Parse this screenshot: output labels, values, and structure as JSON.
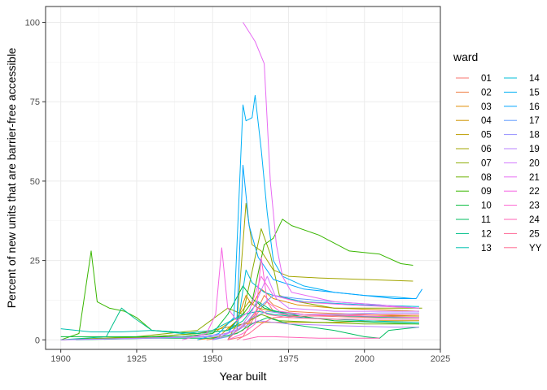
{
  "chart_data": {
    "type": "line",
    "title": "",
    "xlabel": "Year built",
    "ylabel": "Percent of new units that are barrier-free accessible",
    "xlim": [
      1895,
      2025
    ],
    "ylim": [
      -3,
      105
    ],
    "x_ticks": [
      1900,
      1925,
      1950,
      1975,
      2000,
      2025
    ],
    "x_tick_labels": [
      "1900",
      "1925",
      "1950",
      "1975",
      "2000",
      "2025"
    ],
    "y_ticks": [
      0,
      25,
      50,
      75,
      100
    ],
    "y_tick_labels": [
      "0",
      "25",
      "50",
      "75",
      "100"
    ],
    "grid": true,
    "legend": {
      "title": "ward",
      "placement": "right",
      "columns": 2
    },
    "series": [
      {
        "name": "01",
        "color": "#F8766D",
        "points": [
          [
            1955,
            0
          ],
          [
            1960,
            1
          ],
          [
            1963,
            6
          ],
          [
            1966,
            10
          ],
          [
            1968,
            12
          ],
          [
            1970,
            9
          ],
          [
            1973,
            8
          ],
          [
            1978,
            7.5
          ],
          [
            1985,
            7.5
          ],
          [
            1995,
            7.2
          ],
          [
            2005,
            7
          ],
          [
            2018,
            7
          ]
        ]
      },
      {
        "name": "02",
        "color": "#EE8043",
        "points": [
          [
            1948,
            0
          ],
          [
            1955,
            1
          ],
          [
            1960,
            3
          ],
          [
            1964,
            8
          ],
          [
            1967,
            14
          ],
          [
            1970,
            11
          ],
          [
            1975,
            9
          ],
          [
            1985,
            8.5
          ],
          [
            2000,
            8
          ],
          [
            2018,
            7.5
          ]
        ]
      },
      {
        "name": "03",
        "color": "#E08B00",
        "points": [
          [
            1945,
            0
          ],
          [
            1952,
            1
          ],
          [
            1958,
            6
          ],
          [
            1961,
            14
          ],
          [
            1963,
            11
          ],
          [
            1966,
            16
          ],
          [
            1970,
            13
          ],
          [
            1978,
            11
          ],
          [
            1990,
            10
          ],
          [
            2005,
            9.5
          ],
          [
            2018,
            9
          ]
        ]
      },
      {
        "name": "04",
        "color": "#CF9400",
        "points": [
          [
            1900,
            0
          ],
          [
            1930,
            1
          ],
          [
            1945,
            2
          ],
          [
            1955,
            4
          ],
          [
            1960,
            5
          ],
          [
            1965,
            5.5
          ],
          [
            1975,
            5.5
          ],
          [
            1990,
            5.5
          ],
          [
            2005,
            6
          ],
          [
            2018,
            6
          ]
        ]
      },
      {
        "name": "05",
        "color": "#BD9D00",
        "points": [
          [
            1900,
            0
          ],
          [
            1920,
            0.5
          ],
          [
            1940,
            1
          ],
          [
            1950,
            2
          ],
          [
            1958,
            7
          ],
          [
            1962,
            12
          ],
          [
            1965,
            10
          ],
          [
            1970,
            9
          ],
          [
            1980,
            8
          ],
          [
            2000,
            7.5
          ],
          [
            2018,
            7.5
          ]
        ]
      },
      {
        "name": "06",
        "color": "#A3A500",
        "points": [
          [
            1955,
            0
          ],
          [
            1958,
            5
          ],
          [
            1961,
            43
          ],
          [
            1963,
            30
          ],
          [
            1966,
            28
          ],
          [
            1970,
            22
          ],
          [
            1975,
            20
          ],
          [
            1985,
            19.5
          ],
          [
            2000,
            19
          ],
          [
            2016,
            18.5
          ]
        ]
      },
      {
        "name": "07",
        "color": "#8AAB00",
        "points": [
          [
            1900,
            0
          ],
          [
            1925,
            1
          ],
          [
            1945,
            3
          ],
          [
            1955,
            10
          ],
          [
            1960,
            8
          ],
          [
            1966,
            35
          ],
          [
            1969,
            27
          ],
          [
            1972,
            14
          ],
          [
            1978,
            12
          ],
          [
            1990,
            10
          ],
          [
            2005,
            10
          ],
          [
            2019,
            10
          ]
        ]
      },
      {
        "name": "08",
        "color": "#6BB100",
        "points": [
          [
            1900,
            0
          ],
          [
            1930,
            1
          ],
          [
            1945,
            2
          ],
          [
            1955,
            3
          ],
          [
            1960,
            5
          ],
          [
            1966,
            8
          ],
          [
            1972,
            6
          ],
          [
            1985,
            5.5
          ],
          [
            2000,
            5
          ],
          [
            2018,
            5
          ]
        ]
      },
      {
        "name": "09",
        "color": "#39B600",
        "points": [
          [
            1900,
            0
          ],
          [
            1906,
            2
          ],
          [
            1910,
            28
          ],
          [
            1912,
            12
          ],
          [
            1916,
            10
          ],
          [
            1921,
            9
          ],
          [
            1925,
            7
          ],
          [
            1930,
            3
          ],
          [
            1945,
            2
          ],
          [
            1955,
            3
          ],
          [
            1960,
            8
          ],
          [
            1963,
            12
          ],
          [
            1967,
            30
          ],
          [
            1970,
            32
          ],
          [
            1973,
            38
          ],
          [
            1976,
            36
          ],
          [
            1985,
            33
          ],
          [
            1995,
            28
          ],
          [
            2005,
            27
          ],
          [
            2012,
            24
          ],
          [
            2016,
            23.5
          ]
        ]
      },
      {
        "name": "10",
        "color": "#00BA38",
        "points": [
          [
            1900,
            1
          ],
          [
            1920,
            1
          ],
          [
            1940,
            1
          ],
          [
            1950,
            2
          ],
          [
            1955,
            8
          ],
          [
            1960,
            17
          ],
          [
            1963,
            13
          ],
          [
            1967,
            10
          ],
          [
            1975,
            8
          ],
          [
            1990,
            6
          ],
          [
            2005,
            5.5
          ],
          [
            2018,
            5
          ]
        ]
      },
      {
        "name": "11",
        "color": "#00BD5F",
        "points": [
          [
            1905,
            0
          ],
          [
            1930,
            0.5
          ],
          [
            1950,
            0.5
          ],
          [
            1958,
            2
          ],
          [
            1963,
            5
          ],
          [
            1968,
            7
          ],
          [
            1975,
            5
          ],
          [
            1990,
            3
          ],
          [
            2000,
            1
          ],
          [
            2005,
            0.5
          ],
          [
            2008,
            3
          ],
          [
            2018,
            4
          ]
        ]
      },
      {
        "name": "12",
        "color": "#00C08B",
        "points": [
          [
            1900,
            0
          ],
          [
            1915,
            1
          ],
          [
            1920,
            10
          ],
          [
            1924,
            7
          ],
          [
            1930,
            3
          ],
          [
            1945,
            2
          ],
          [
            1955,
            3
          ],
          [
            1960,
            6
          ],
          [
            1965,
            12
          ],
          [
            1970,
            9
          ],
          [
            1980,
            8
          ],
          [
            1995,
            7.5
          ],
          [
            2010,
            7
          ],
          [
            2018,
            7
          ]
        ]
      },
      {
        "name": "13",
        "color": "#00C0AF",
        "points": [
          [
            1900,
            3.5
          ],
          [
            1910,
            2.5
          ],
          [
            1920,
            2.5
          ],
          [
            1930,
            3
          ],
          [
            1940,
            2
          ],
          [
            1950,
            3
          ],
          [
            1956,
            6
          ],
          [
            1960,
            8
          ],
          [
            1965,
            9
          ],
          [
            1970,
            8
          ],
          [
            1980,
            7
          ],
          [
            2000,
            6
          ],
          [
            2018,
            5.5
          ]
        ]
      },
      {
        "name": "14",
        "color": "#00BCD8",
        "points": [
          [
            1955,
            0
          ],
          [
            1958,
            3
          ],
          [
            1961,
            22
          ],
          [
            1963,
            18
          ],
          [
            1967,
            15
          ],
          [
            1970,
            14
          ],
          [
            1980,
            12
          ],
          [
            2000,
            11
          ],
          [
            2018,
            10.5
          ]
        ]
      },
      {
        "name": "15",
        "color": "#00B0F6",
        "points": [
          [
            1945,
            0
          ],
          [
            1952,
            2
          ],
          [
            1957,
            7
          ],
          [
            1960,
            74
          ],
          [
            1961,
            69
          ],
          [
            1963,
            70
          ],
          [
            1964,
            77
          ],
          [
            1966,
            60
          ],
          [
            1968,
            40
          ],
          [
            1970,
            25
          ],
          [
            1973,
            20
          ],
          [
            1980,
            17
          ],
          [
            1990,
            15
          ],
          [
            2000,
            14
          ],
          [
            2010,
            13.5
          ],
          [
            2016,
            13
          ]
        ]
      },
      {
        "name": "16",
        "color": "#00A5FF",
        "points": [
          [
            1950,
            0
          ],
          [
            1955,
            2
          ],
          [
            1958,
            6
          ],
          [
            1960,
            55
          ],
          [
            1962,
            36
          ],
          [
            1965,
            26
          ],
          [
            1970,
            19
          ],
          [
            1980,
            16
          ],
          [
            1990,
            15
          ],
          [
            2000,
            14
          ],
          [
            2010,
            13
          ],
          [
            2017,
            13
          ],
          [
            2019,
            16
          ]
        ]
      },
      {
        "name": "17",
        "color": "#619CFF",
        "points": [
          [
            1950,
            0
          ],
          [
            1955,
            1
          ],
          [
            1960,
            4
          ],
          [
            1965,
            10
          ],
          [
            1970,
            14
          ],
          [
            1978,
            13
          ],
          [
            1990,
            12
          ],
          [
            2005,
            11
          ],
          [
            2018,
            10
          ]
        ]
      },
      {
        "name": "18",
        "color": "#9590FF",
        "points": [
          [
            1900,
            0
          ],
          [
            1930,
            0.5
          ],
          [
            1950,
            1
          ],
          [
            1958,
            3
          ],
          [
            1963,
            7
          ],
          [
            1968,
            9
          ],
          [
            1975,
            8
          ],
          [
            1990,
            8
          ],
          [
            2005,
            8.5
          ],
          [
            2018,
            8.5
          ]
        ]
      },
      {
        "name": "19",
        "color": "#B983FF",
        "points": [
          [
            1900,
            0
          ],
          [
            1925,
            0.5
          ],
          [
            1945,
            1
          ],
          [
            1955,
            2
          ],
          [
            1960,
            4
          ],
          [
            1965,
            6
          ],
          [
            1975,
            5
          ],
          [
            1990,
            4.5
          ],
          [
            2010,
            4
          ],
          [
            2018,
            4
          ]
        ]
      },
      {
        "name": "20",
        "color": "#D376FF",
        "points": [
          [
            1950,
            0
          ],
          [
            1955,
            2
          ],
          [
            1960,
            5
          ],
          [
            1963,
            9
          ],
          [
            1968,
            20
          ],
          [
            1971,
            13
          ],
          [
            1975,
            10
          ],
          [
            1990,
            9
          ],
          [
            2005,
            9
          ],
          [
            2018,
            9
          ]
        ]
      },
      {
        "name": "21",
        "color": "#E76BF3",
        "points": [
          [
            1960,
            100
          ],
          [
            1964,
            94
          ],
          [
            1967,
            87
          ],
          [
            1969,
            50
          ],
          [
            1971,
            30
          ],
          [
            1973,
            20
          ],
          [
            1976,
            15
          ],
          [
            1990,
            12
          ],
          [
            2005,
            11
          ],
          [
            2018,
            10
          ]
        ]
      },
      {
        "name": "22",
        "color": "#F564E3",
        "points": [
          [
            1940,
            0
          ],
          [
            1948,
            2
          ],
          [
            1951,
            8
          ],
          [
            1953,
            29
          ],
          [
            1955,
            10
          ],
          [
            1958,
            6
          ],
          [
            1962,
            9
          ],
          [
            1966,
            20
          ],
          [
            1970,
            14
          ],
          [
            1978,
            12
          ],
          [
            1995,
            11
          ],
          [
            2018,
            10
          ]
        ]
      },
      {
        "name": "23",
        "color": "#FD61D1",
        "points": [
          [
            1955,
            0
          ],
          [
            1960,
            2
          ],
          [
            1964,
            5
          ],
          [
            1966,
            26
          ],
          [
            1968,
            12
          ],
          [
            1972,
            9
          ],
          [
            1980,
            8
          ],
          [
            2000,
            7.5
          ],
          [
            2018,
            7
          ]
        ]
      },
      {
        "name": "24",
        "color": "#FF63B6",
        "points": [
          [
            1960,
            0
          ],
          [
            1965,
            1
          ],
          [
            1970,
            1
          ],
          [
            1985,
            0.5
          ],
          [
            2000,
            0.5
          ],
          [
            2005,
            0.5
          ]
        ]
      },
      {
        "name": "25",
        "color": "#FF6A98",
        "points": [
          [
            1955,
            0
          ],
          [
            1958,
            3
          ],
          [
            1962,
            6
          ],
          [
            1965,
            10
          ],
          [
            1968,
            8
          ],
          [
            1975,
            7
          ],
          [
            1990,
            6.5
          ],
          [
            2005,
            6.5
          ],
          [
            2018,
            6.5
          ]
        ]
      },
      {
        "name": "YY",
        "color": "#FF6C91",
        "points": [
          [
            1958,
            0
          ],
          [
            1962,
            2
          ],
          [
            1966,
            5
          ],
          [
            1970,
            7
          ],
          [
            1980,
            7.5
          ],
          [
            1995,
            7.8
          ],
          [
            2010,
            8
          ],
          [
            2018,
            8
          ]
        ]
      }
    ]
  }
}
